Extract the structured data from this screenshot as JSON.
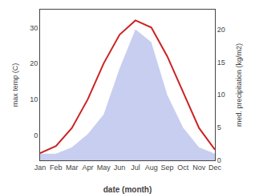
{
  "chart_data": {
    "type": "line",
    "categories": [
      "Jan",
      "Feb",
      "Mar",
      "Apr",
      "May",
      "Jun",
      "Jul",
      "Aug",
      "Sep",
      "Oct",
      "Nov",
      "Dec"
    ],
    "series": [
      {
        "type": "area",
        "axis": "y2",
        "color": "#c8cef0",
        "values": [
          1,
          1,
          2,
          4,
          7,
          14,
          20,
          18,
          10,
          5,
          2,
          1
        ]
      },
      {
        "type": "line",
        "color": "#cc2222",
        "values": [
          -5,
          -3,
          2,
          10,
          20,
          28,
          32,
          30,
          22,
          12,
          2,
          -4
        ]
      }
    ],
    "xlabel": "date (month)",
    "ylabel": "max temp (C)",
    "y2label": "med. precipitation (kg/m2)",
    "ylim": [
      -7,
      35
    ],
    "yticks": [
      0,
      10,
      20,
      30
    ],
    "y2lim": [
      0,
      23
    ],
    "y2ticks": [
      0,
      5,
      10,
      15,
      20
    ],
    "grid": false
  }
}
